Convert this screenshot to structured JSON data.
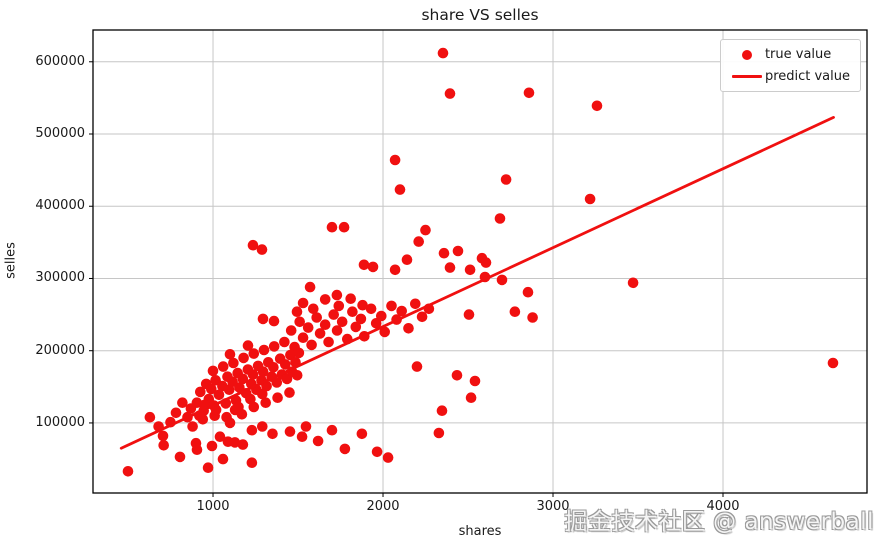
{
  "figure": {
    "background": "#ffffff"
  },
  "chart_data": {
    "type": "scatter",
    "title": "share VS selles",
    "xlabel": "shares",
    "ylabel": "selles",
    "xlim": [
      294,
      4847
    ],
    "ylim": [
      3000,
      644000
    ],
    "xticks": [
      1000,
      2000,
      3000,
      4000
    ],
    "yticks": [
      100000,
      200000,
      300000,
      400000,
      500000,
      600000
    ],
    "grid": true,
    "legend": {
      "position": "upper right",
      "items": [
        {
          "label": "true value",
          "marker": "dot"
        },
        {
          "label": "predict value",
          "marker": "line"
        }
      ]
    },
    "colors": {
      "points": "#f01010",
      "line": "#f01010",
      "grid": "#c6c6c6",
      "axis": "#000000",
      "text": "#1a1a1a"
    },
    "series": [
      {
        "name": "true value",
        "kind": "scatter",
        "points": [
          [
            2353,
            612000
          ],
          [
            2394,
            556000
          ],
          [
            2859,
            557000
          ],
          [
            3259,
            539000
          ],
          [
            2071,
            464000
          ],
          [
            2100,
            423000
          ],
          [
            2724,
            437000
          ],
          [
            3218,
            410000
          ],
          [
            2688,
            383000
          ],
          [
            1700,
            371000
          ],
          [
            1771,
            371000
          ],
          [
            2210,
            351000
          ],
          [
            2250,
            367000
          ],
          [
            3471,
            294000
          ],
          [
            4647,
            183000
          ],
          [
            2359,
            335000
          ],
          [
            2441,
            338000
          ],
          [
            2141,
            326000
          ],
          [
            1888,
            319000
          ],
          [
            1941,
            316000
          ],
          [
            2071,
            312000
          ],
          [
            2394,
            315000
          ],
          [
            2512,
            312000
          ],
          [
            2582,
            328000
          ],
          [
            2606,
            322000
          ],
          [
            2600,
            302000
          ],
          [
            2700,
            298000
          ],
          [
            2853,
            281000
          ],
          [
            2776,
            254000
          ],
          [
            2506,
            250000
          ],
          [
            2880,
            246000
          ],
          [
            1571,
            288000
          ],
          [
            1729,
            277000
          ],
          [
            1235,
            346000
          ],
          [
            1288,
            340000
          ],
          [
            2541,
            158000
          ],
          [
            2518,
            135000
          ],
          [
            2347,
            117000
          ],
          [
            2329,
            86000
          ],
          [
            2200,
            178000
          ],
          [
            2435,
            166000
          ],
          [
            2030,
            52000
          ],
          [
            1420,
            212000
          ],
          [
            1460,
            228000
          ],
          [
            1480,
            205000
          ],
          [
            1510,
            240000
          ],
          [
            1530,
            218000
          ],
          [
            1560,
            232000
          ],
          [
            1580,
            208000
          ],
          [
            1610,
            246000
          ],
          [
            1630,
            224000
          ],
          [
            1660,
            236000
          ],
          [
            1680,
            212000
          ],
          [
            1710,
            250000
          ],
          [
            1730,
            228000
          ],
          [
            1760,
            240000
          ],
          [
            1790,
            216000
          ],
          [
            1820,
            254000
          ],
          [
            1840,
            233000
          ],
          [
            1870,
            244000
          ],
          [
            1890,
            220000
          ],
          [
            1930,
            258000
          ],
          [
            1960,
            238000
          ],
          [
            1990,
            248000
          ],
          [
            2010,
            226000
          ],
          [
            2050,
            262000
          ],
          [
            2080,
            243000
          ],
          [
            2110,
            255000
          ],
          [
            2150,
            231000
          ],
          [
            2190,
            265000
          ],
          [
            2230,
            247000
          ],
          [
            2270,
            258000
          ],
          [
            1530,
            266000
          ],
          [
            1590,
            258000
          ],
          [
            1660,
            271000
          ],
          [
            1740,
            262000
          ],
          [
            1810,
            272000
          ],
          [
            1880,
            263000
          ],
          [
            1294,
            244000
          ],
          [
            1359,
            241000
          ],
          [
            1206,
            207000
          ],
          [
            1494,
            254000
          ],
          [
            905,
            128000
          ],
          [
            925,
            143000
          ],
          [
            945,
            117000
          ],
          [
            960,
            154000
          ],
          [
            975,
            133000
          ],
          [
            990,
            147000
          ],
          [
            1005,
            124000
          ],
          [
            1015,
            159000
          ],
          [
            1035,
            139000
          ],
          [
            1055,
            151000
          ],
          [
            1075,
            127000
          ],
          [
            1085,
            164000
          ],
          [
            1095,
            146000
          ],
          [
            1115,
            157000
          ],
          [
            1135,
            131000
          ],
          [
            1145,
            169000
          ],
          [
            1155,
            149000
          ],
          [
            1175,
            161000
          ],
          [
            1195,
            141000
          ],
          [
            1205,
            174000
          ],
          [
            1225,
            154000
          ],
          [
            1235,
            167000
          ],
          [
            1255,
            146000
          ],
          [
            1265,
            179000
          ],
          [
            1285,
            159000
          ],
          [
            1295,
            171000
          ],
          [
            1315,
            151000
          ],
          [
            1325,
            184000
          ],
          [
            1345,
            164000
          ],
          [
            1355,
            177000
          ],
          [
            1375,
            156000
          ],
          [
            1395,
            189000
          ],
          [
            1405,
            167000
          ],
          [
            1425,
            181000
          ],
          [
            1435,
            161000
          ],
          [
            1455,
            194000
          ],
          [
            1465,
            171000
          ],
          [
            1485,
            184000
          ],
          [
            1495,
            166000
          ],
          [
            1505,
            197000
          ],
          [
            1130,
            118000
          ],
          [
            1170,
            112000
          ],
          [
            1240,
            122000
          ],
          [
            1310,
            128000
          ],
          [
            1380,
            135000
          ],
          [
            1450,
            142000
          ],
          [
            940,
            105000
          ],
          [
            1010,
            110000
          ],
          [
            1080,
            108000
          ],
          [
            1150,
            122000
          ],
          [
            1220,
            133000
          ],
          [
            1290,
            140000
          ],
          [
            1000,
            172000
          ],
          [
            1060,
            178000
          ],
          [
            1120,
            183000
          ],
          [
            1180,
            190000
          ],
          [
            1240,
            196000
          ],
          [
            1300,
            201000
          ],
          [
            1360,
            206000
          ],
          [
            1100,
            195000
          ],
          [
            500,
            33000
          ],
          [
            629,
            108000
          ],
          [
            680,
            95000
          ],
          [
            706,
            82000
          ],
          [
            710,
            69000
          ],
          [
            750,
            101000
          ],
          [
            782,
            114000
          ],
          [
            806,
            53000
          ],
          [
            820,
            128000
          ],
          [
            850,
            108000
          ],
          [
            870,
            120000
          ],
          [
            880,
            95000
          ],
          [
            900,
            72000
          ],
          [
            906,
            63000
          ],
          [
            920,
            110000
          ],
          [
            950,
            125000
          ],
          [
            971,
            38000
          ],
          [
            994,
            68000
          ],
          [
            1018,
            118000
          ],
          [
            1041,
            81000
          ],
          [
            1059,
            50000
          ],
          [
            1088,
            74000
          ],
          [
            1100,
            100000
          ],
          [
            1129,
            73000
          ],
          [
            1176,
            70000
          ],
          [
            1229,
            45000
          ],
          [
            1229,
            90000
          ],
          [
            1290,
            95000
          ],
          [
            1350,
            85000
          ],
          [
            1453,
            88000
          ],
          [
            1524,
            81000
          ],
          [
            1547,
            95000
          ],
          [
            1618,
            75000
          ],
          [
            1700,
            90000
          ],
          [
            1776,
            64000
          ],
          [
            1876,
            85000
          ],
          [
            1965,
            60000
          ]
        ]
      },
      {
        "name": "predict value",
        "kind": "line",
        "points": [
          [
            460,
            65000
          ],
          [
            4650,
            523000
          ]
        ]
      }
    ]
  },
  "watermark": {
    "text": "掘金技术社区 @ answerball"
  }
}
